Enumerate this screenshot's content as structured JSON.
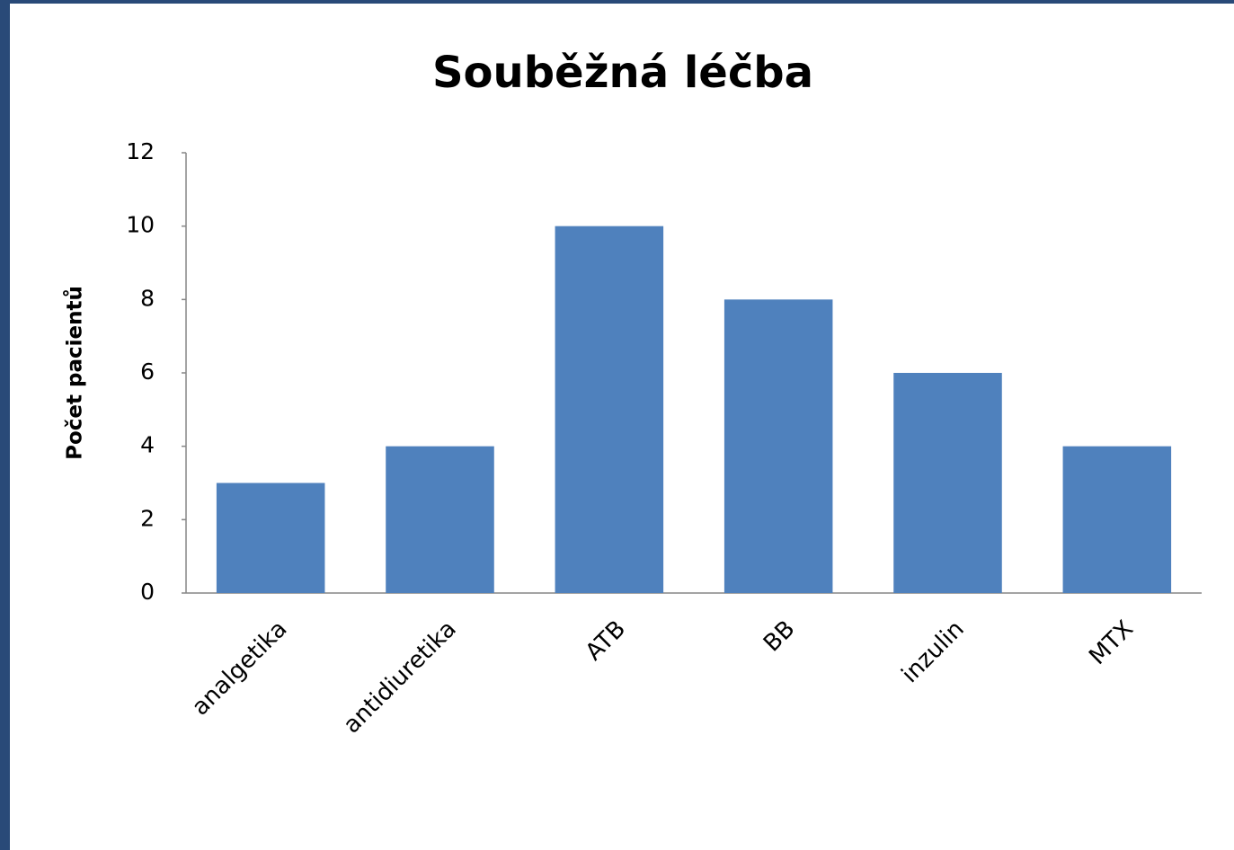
{
  "chart_data": {
    "type": "bar",
    "title": "Souběžná léčba",
    "ylabel": "Počet pacientů",
    "categories": [
      "analgetika",
      "antidiuretika",
      "ATB",
      "BB",
      "inzulin",
      "MTX"
    ],
    "values": [
      3,
      4,
      10,
      8,
      6,
      4
    ],
    "color": "#4f81bd",
    "ylim": [
      0,
      12
    ],
    "yticks": [
      0,
      2,
      4,
      6,
      8,
      10,
      12
    ],
    "grid": false
  }
}
